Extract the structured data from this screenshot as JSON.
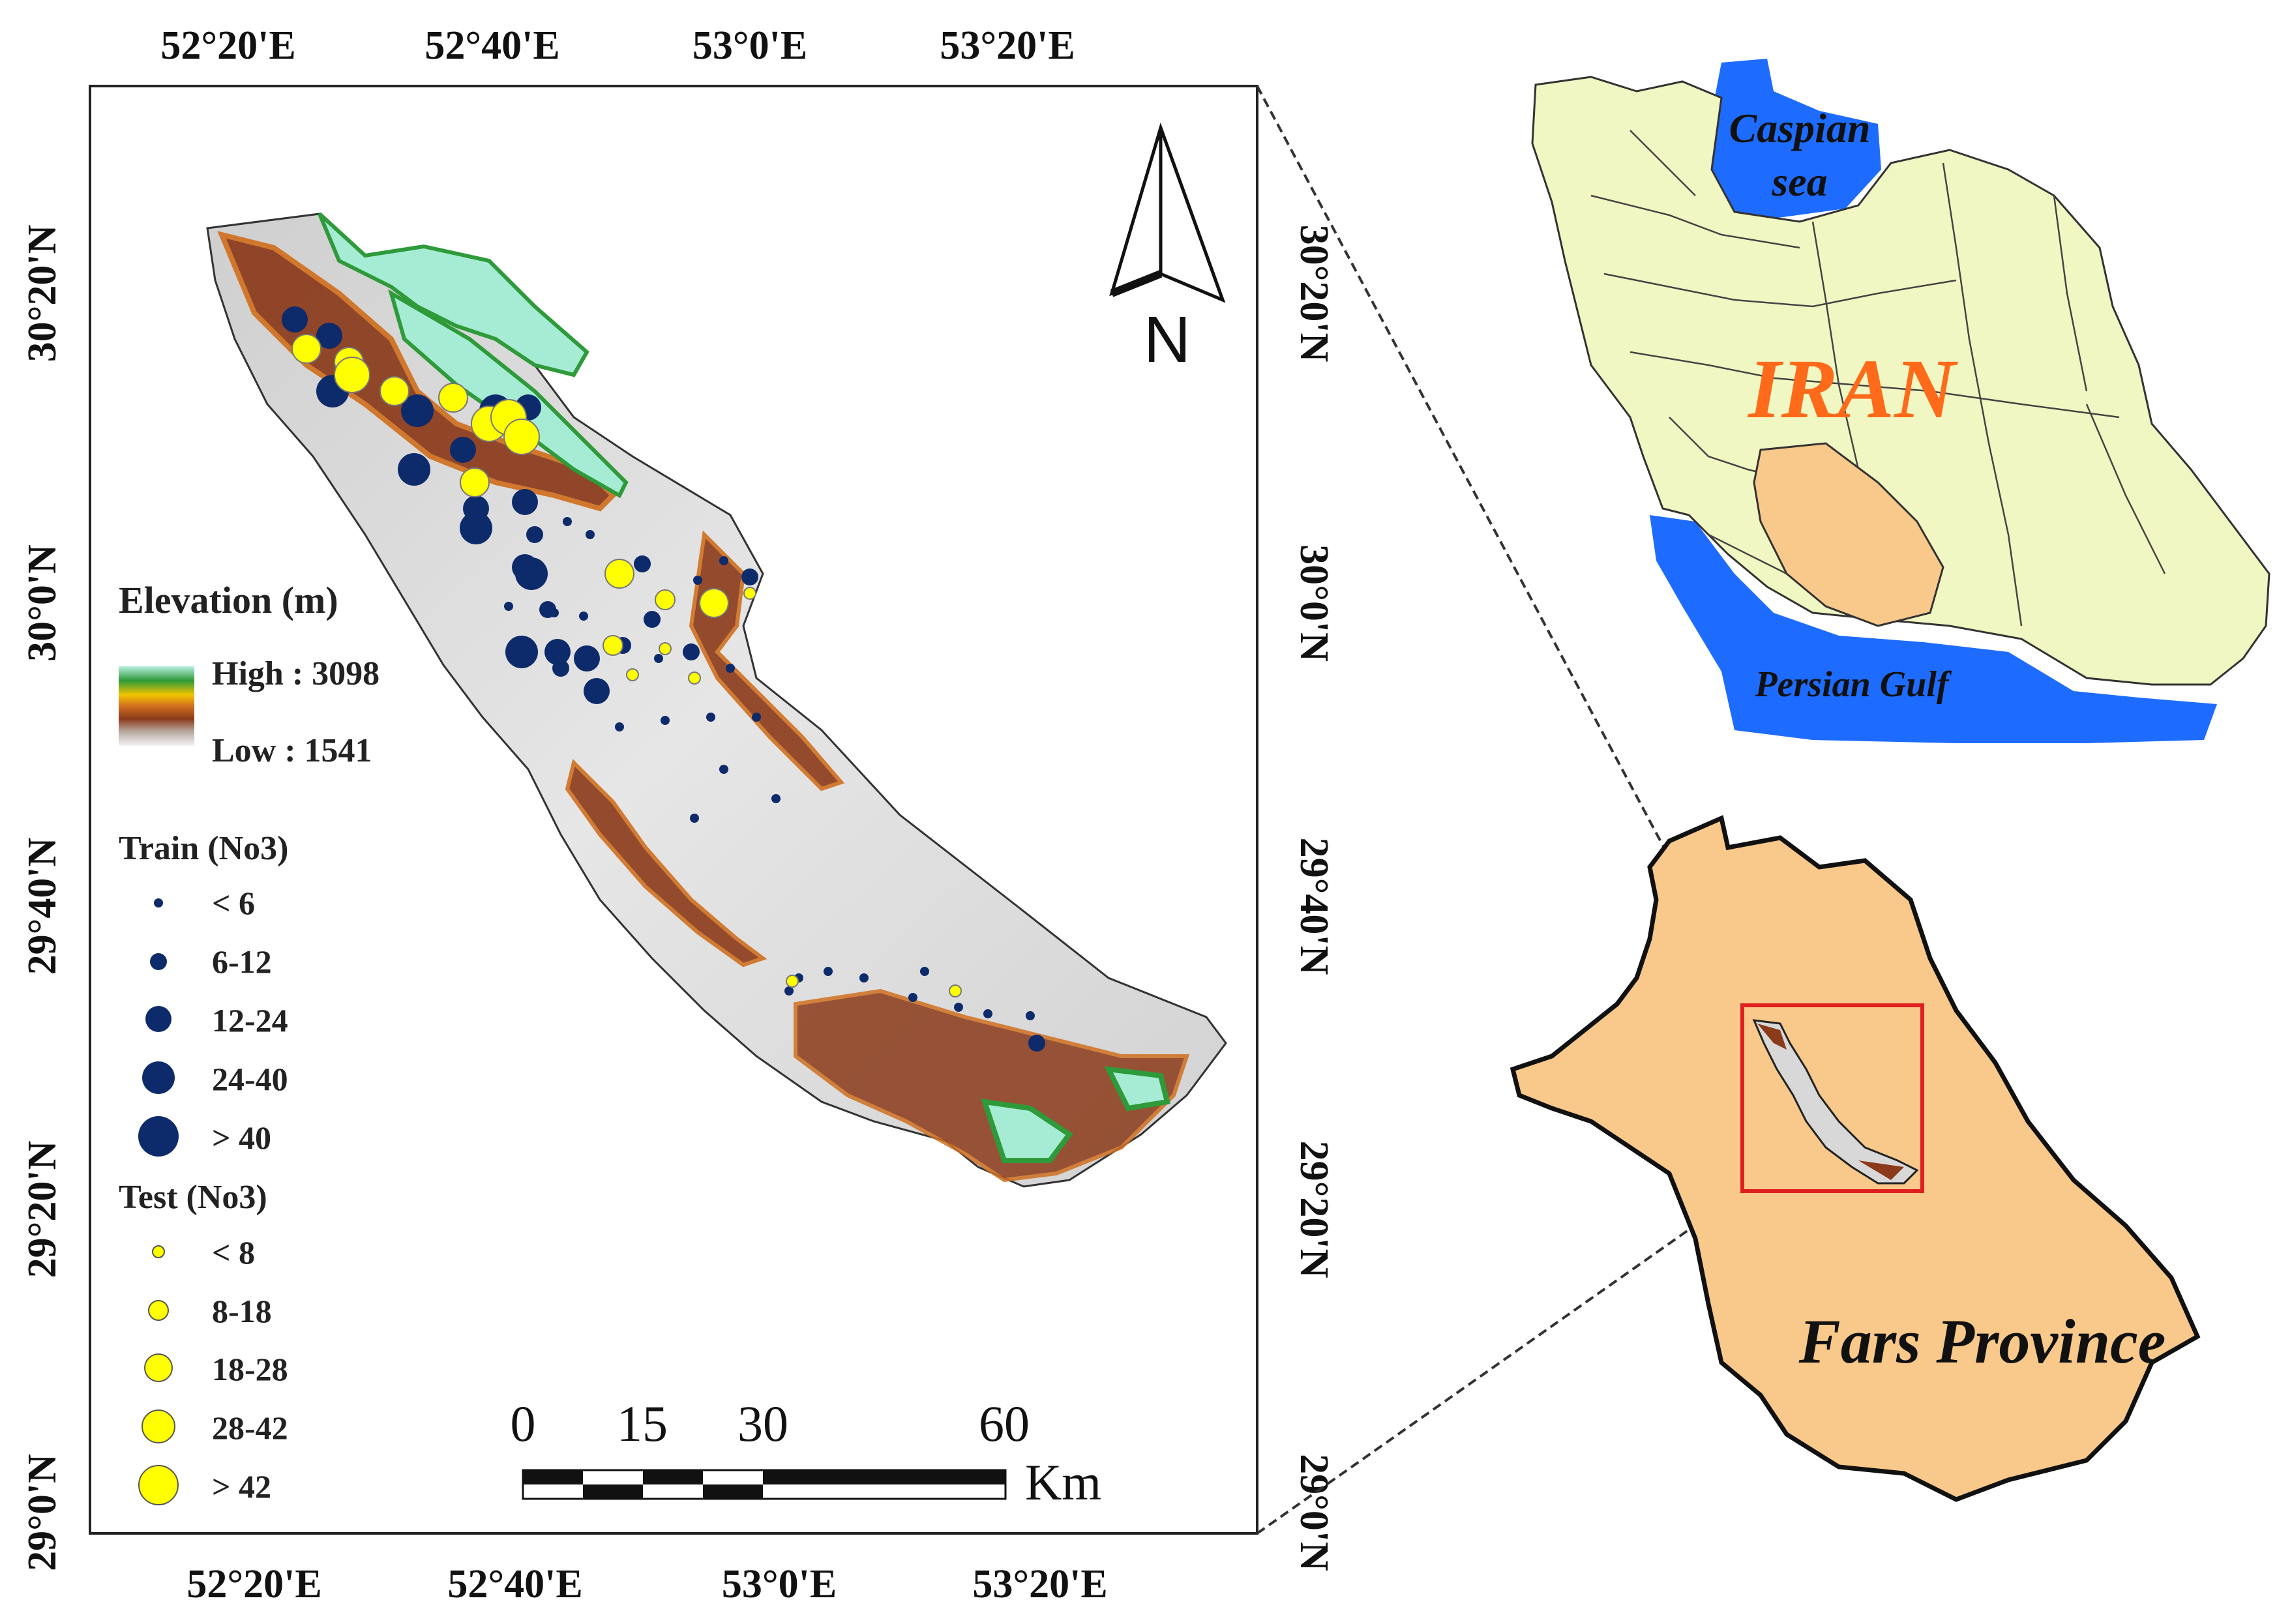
{
  "main_map": {
    "lon_ticks": [
      "52°20'E",
      "52°40'E",
      "53°0'E",
      "53°20'E"
    ],
    "lat_ticks": [
      "30°20'N",
      "30°0'N",
      "29°40'N",
      "29°20'N",
      "29°0'N"
    ],
    "north_label": "N",
    "legend": {
      "elevation_title": "Elevation (m)",
      "elevation_high": "High : 3098",
      "elevation_low": "Low : 1541",
      "train_title": "Train (No3)",
      "train_classes": [
        "< 6",
        "6-12",
        "12-24",
        "24-40",
        "> 40"
      ],
      "test_title": "Test (No3)",
      "test_classes": [
        "< 8",
        "8-18",
        "18-28",
        "28-42",
        "> 42"
      ]
    },
    "scale_bar": {
      "labels": [
        "0",
        "15",
        "30",
        "60"
      ],
      "unit": "Km"
    },
    "colors": {
      "train": "#0d2a6b",
      "test": "#ffff00",
      "hillshade": "#dcdcdc",
      "low_terrain": "#8b3a1a",
      "mid_terrain": "#d07020",
      "high_terrain": "#2e9a3a",
      "peak_terrain": "#9fe8c8"
    }
  },
  "inset_iran": {
    "country_label": "IRAN",
    "caspian_label_1": "Caspian",
    "caspian_label_2": "sea",
    "gulf_label": "Persian Gulf",
    "colors": {
      "land": "#f1f7c2",
      "water": "#1e6cff",
      "fars": "#f8c98a",
      "label": "#ff6a1a"
    }
  },
  "inset_fars": {
    "province_label": "Fars Province",
    "colors": {
      "land": "#f8c98a",
      "frame": "#e02020"
    }
  }
}
